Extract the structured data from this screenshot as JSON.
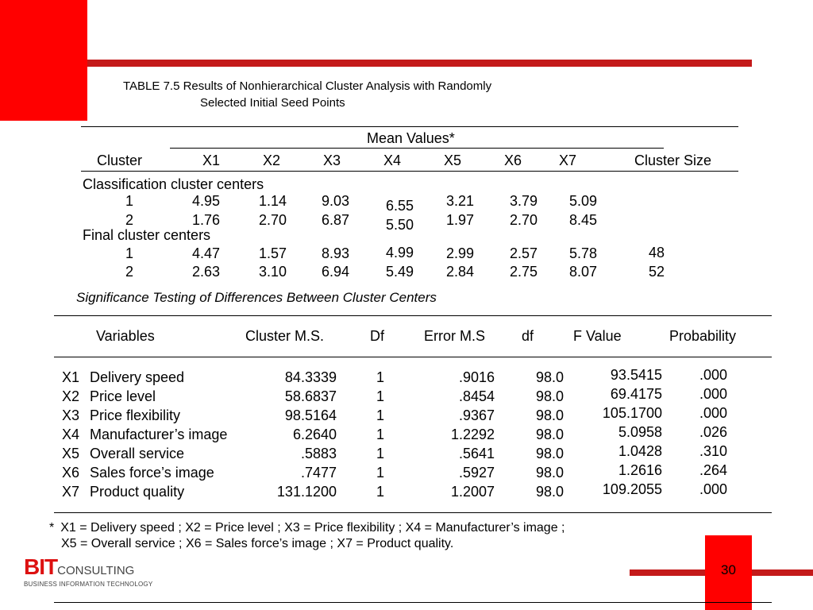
{
  "caption": {
    "line1": "TABLE 7.5  Results of Nonhierarchical Cluster Analysis with Randomly",
    "line2": "Selected Initial Seed Points"
  },
  "table1": {
    "mean_values": "Mean Values",
    "asterisk": "*",
    "headers": [
      "Cluster",
      "X1",
      "X2",
      "X3",
      "X4",
      "X5",
      "X6",
      "X7",
      "Cluster Size"
    ],
    "section1": "Classification cluster centers",
    "rows1": [
      {
        "cluster": "1",
        "x1": "4.95",
        "x2": "1.14",
        "x3": "9.03",
        "x4": "6.55",
        "x5": "3.21",
        "x6": "3.79",
        "x7": "5.09"
      },
      {
        "cluster": "2",
        "x1": "1.76",
        "x2": "2.70",
        "x3": "6.87",
        "x4": "5.50",
        "x5": "1.97",
        "x6": "2.70",
        "x7": "8.45"
      }
    ],
    "section2": "Final cluster centers",
    "rows2": [
      {
        "cluster": "1",
        "x1": "4.47",
        "x2": "1.57",
        "x3": "8.93",
        "x4": "4.99",
        "x5": "2.99",
        "x6": "2.57",
        "x7": "5.78",
        "size": "48"
      },
      {
        "cluster": "2",
        "x1": "2.63",
        "x2": "3.10",
        "x3": "6.94",
        "x4": "5.49",
        "x5": "2.84",
        "x6": "2.75",
        "x7": "8.07",
        "size": "52"
      }
    ]
  },
  "sig_title": "Significance Testing of Differences Between Cluster Centers",
  "table2": {
    "headers": [
      "Variables",
      "Cluster M.S.",
      "Df",
      "Error M.S",
      "df",
      "F Value",
      "Probability"
    ],
    "rows": [
      {
        "code": "X1",
        "name": "Delivery speed",
        "cms": "84.3339",
        "df1": "1",
        "ems": ".9016",
        "df2": "98.0",
        "f": "93.5415",
        "p": ".000"
      },
      {
        "code": "X2",
        "name": "Price level",
        "cms": "58.6837",
        "df1": "1",
        "ems": ".8454",
        "df2": "98.0",
        "f": "69.4175",
        "p": ".000"
      },
      {
        "code": "X3",
        "name": "Price flexibility",
        "cms": "98.5164",
        "df1": "1",
        "ems": ".9367",
        "df2": "98.0",
        "f": "105.1700",
        "p": ".000"
      },
      {
        "code": "X4",
        "name": "Manufacturer’s image",
        "cms": "6.2640",
        "df1": "1",
        "ems": "1.2292",
        "df2": "98.0",
        "f": "5.0958",
        "p": ".026"
      },
      {
        "code": "X5",
        "name": "Overall service",
        "cms": ".5883",
        "df1": "1",
        "ems": ".5641",
        "df2": "98.0",
        "f": "1.0428",
        "p": ".310"
      },
      {
        "code": "X6",
        "name": "Sales force’s image",
        "cms": ".7477",
        "df1": "1",
        "ems": ".5927",
        "df2": "98.0",
        "f": "1.2616",
        "p": ".264"
      },
      {
        "code": "X7",
        "name": "Product quality",
        "cms": "131.1200",
        "df1": "1",
        "ems": "1.2007",
        "df2": "98.0",
        "f": "109.2055",
        "p": ".000"
      }
    ]
  },
  "footnote": {
    "mark": "*",
    "line1": "X1 = Delivery speed ; X2 = Price level ; X3 = Price flexibility ; X4 = Manufacturer’s image ;",
    "line2": "X5 = Overall service ; X6 = Sales force’s image ; X7 = Product quality."
  },
  "logo": {
    "bit": "BIT",
    "consulting": "CONSULTING",
    "sub": "BUSINESS INFORMATION TECHNOLOGY"
  },
  "page_number": "30",
  "colors": {
    "accent_red": "#ff0000",
    "band_red": "#c41a1a"
  }
}
